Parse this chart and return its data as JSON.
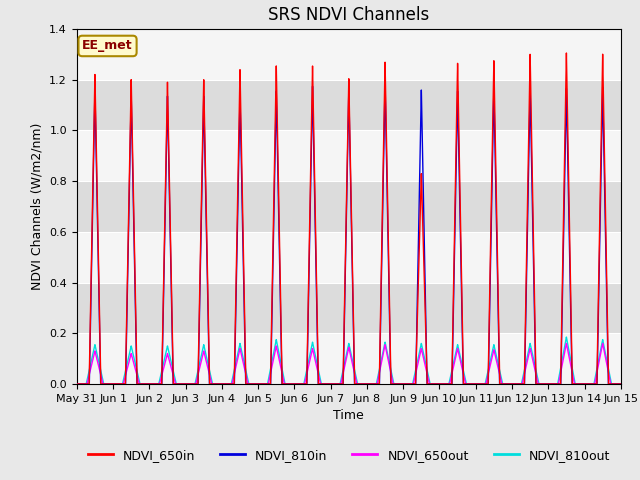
{
  "title": "SRS NDVI Channels",
  "xlabel": "Time",
  "ylabel": "NDVI Channels (W/m2/nm)",
  "annotation": "EE_met",
  "ylim": [
    0.0,
    1.4
  ],
  "xlim_days": [
    0,
    15
  ],
  "background_color": "#e8e8e8",
  "colors": {
    "NDVI_650in": "#ff0000",
    "NDVI_810in": "#0000dd",
    "NDVI_650out": "#ff00ff",
    "NDVI_810out": "#00dddd"
  },
  "peaks_650in": [
    1.22,
    1.2,
    1.19,
    1.2,
    1.24,
    1.255,
    1.255,
    1.205,
    1.27,
    0.83,
    1.265,
    1.275,
    1.3,
    1.305,
    1.3
  ],
  "peaks_810in": [
    1.16,
    1.14,
    1.135,
    1.135,
    1.135,
    1.155,
    1.175,
    1.16,
    1.19,
    1.16,
    1.155,
    1.165,
    1.165,
    1.165,
    1.17
  ],
  "peaks_650out": [
    0.13,
    0.12,
    0.12,
    0.13,
    0.14,
    0.15,
    0.14,
    0.145,
    0.155,
    0.14,
    0.14,
    0.135,
    0.14,
    0.16,
    0.16
  ],
  "peaks_810out": [
    0.155,
    0.15,
    0.15,
    0.155,
    0.16,
    0.175,
    0.165,
    0.16,
    0.165,
    0.16,
    0.155,
    0.155,
    0.16,
    0.185,
    0.175
  ],
  "x_tick_labels": [
    "May 31",
    "Jun 1",
    "Jun 2",
    "Jun 3",
    "Jun 4",
    "Jun 5",
    "Jun 6",
    "Jun 7",
    "Jun 8",
    "Jun 9",
    "Jun 10",
    "Jun 11",
    "Jun 12",
    "Jun 13",
    "Jun 14",
    "Jun 15"
  ],
  "grid_color": "#ffffff",
  "title_fontsize": 12,
  "label_fontsize": 9,
  "tick_fontsize": 8,
  "legend_fontsize": 9
}
